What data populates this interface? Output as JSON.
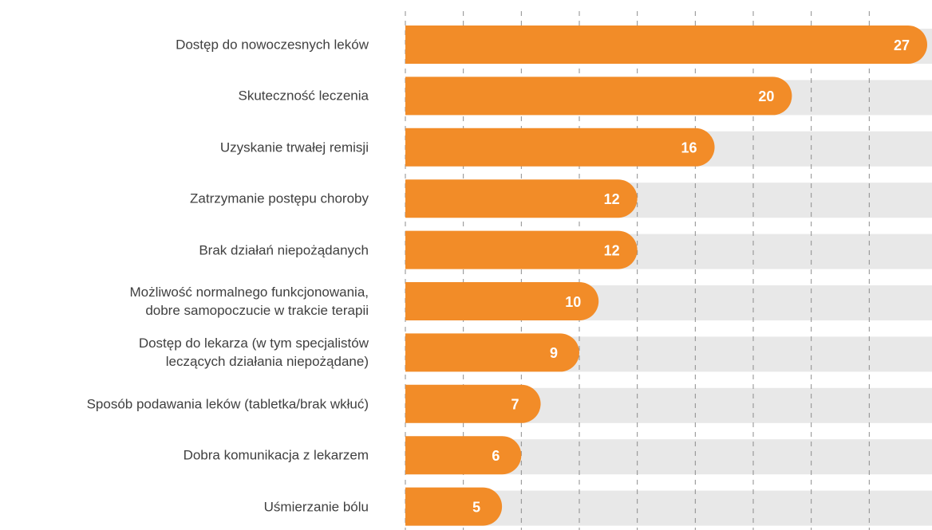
{
  "chart_data": {
    "type": "bar",
    "orientation": "horizontal",
    "categories": [
      "Dostęp do nowoczesnych leków",
      "Skuteczność leczenia",
      "Uzyskanie trwałej remisji",
      "Zatrzymanie postępu choroby",
      "Brak działań niepożądanych",
      "Możliwość normalnego funkcjonowania,\ndobre samopoczucie w trakcie terapii",
      "Dostęp do lekarza (w tym specjalistów\nleczących działania niepożądane)",
      "Sposób podawania leków (tabletka/brak wkłuć)",
      "Dobra komunikacja z lekarzem",
      "Uśmierzanie bólu"
    ],
    "values": [
      27,
      20,
      16,
      12,
      12,
      10,
      9,
      7,
      6,
      5
    ],
    "color": "#f28c28",
    "xlim": [
      0,
      27
    ],
    "xticks": [
      0,
      3,
      6,
      9,
      12,
      15,
      18,
      21,
      24
    ],
    "grid": true
  }
}
